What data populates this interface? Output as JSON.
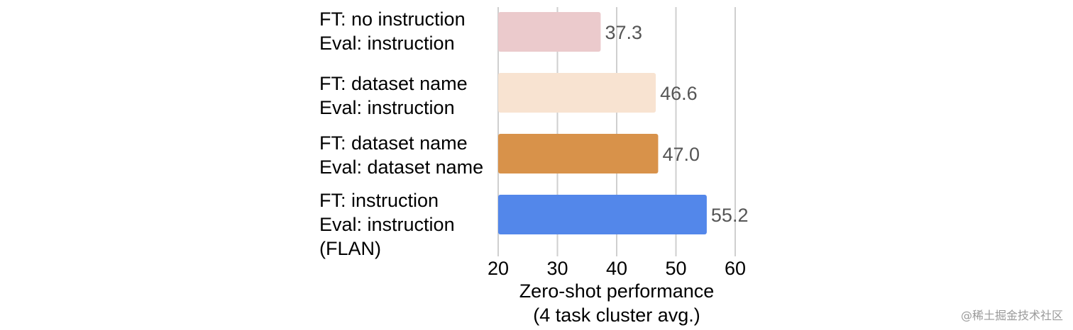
{
  "chart_data": {
    "type": "bar",
    "orientation": "horizontal",
    "categories": [
      [
        "FT: no instruction",
        "Eval: instruction"
      ],
      [
        "FT: dataset name",
        "Eval: instruction"
      ],
      [
        "FT: dataset name",
        "Eval: dataset name"
      ],
      [
        "FT: instruction",
        "Eval: instruction",
        "(FLAN)"
      ]
    ],
    "values": [
      37.3,
      46.6,
      47.0,
      55.2
    ],
    "value_labels": [
      "37.3",
      "46.6",
      "47.0",
      "55.2"
    ],
    "colors": [
      "#ebcacc",
      "#f8e3d1",
      "#d8924a",
      "#5387ea"
    ],
    "xlabel": [
      "Zero-shot performance",
      "(4 task cluster avg.)"
    ],
    "xlim": [
      20,
      60
    ],
    "xticks": [
      20,
      30,
      40,
      50,
      60
    ],
    "grid": true,
    "grid_color": "#cfcfcf"
  },
  "watermark": "@稀土掘金技术社区"
}
